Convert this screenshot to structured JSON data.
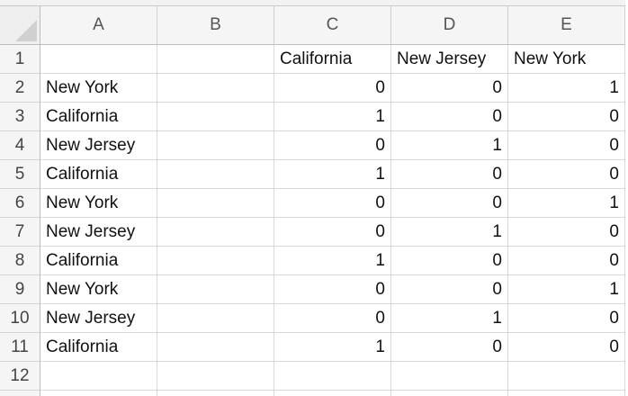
{
  "columns": [
    "A",
    "B",
    "C",
    "D",
    "E"
  ],
  "rows": [
    {
      "num": "1",
      "cells": [
        "",
        "",
        "California",
        "New Jersey",
        "New York"
      ]
    },
    {
      "num": "2",
      "cells": [
        "New York",
        "",
        "0",
        "0",
        "1"
      ]
    },
    {
      "num": "3",
      "cells": [
        "California",
        "",
        "1",
        "0",
        "0"
      ]
    },
    {
      "num": "4",
      "cells": [
        "New Jersey",
        "",
        "0",
        "1",
        "0"
      ]
    },
    {
      "num": "5",
      "cells": [
        "California",
        "",
        "1",
        "0",
        "0"
      ]
    },
    {
      "num": "6",
      "cells": [
        "New York",
        "",
        "0",
        "0",
        "1"
      ]
    },
    {
      "num": "7",
      "cells": [
        "New Jersey",
        "",
        "0",
        "1",
        "0"
      ]
    },
    {
      "num": "8",
      "cells": [
        "California",
        "",
        "1",
        "0",
        "0"
      ]
    },
    {
      "num": "9",
      "cells": [
        "New York",
        "",
        "0",
        "0",
        "1"
      ]
    },
    {
      "num": "10",
      "cells": [
        "New Jersey",
        "",
        "0",
        "1",
        "0"
      ]
    },
    {
      "num": "11",
      "cells": [
        "California",
        "",
        "1",
        "0",
        "0"
      ]
    },
    {
      "num": "12",
      "cells": [
        "",
        "",
        "",
        "",
        ""
      ]
    }
  ]
}
